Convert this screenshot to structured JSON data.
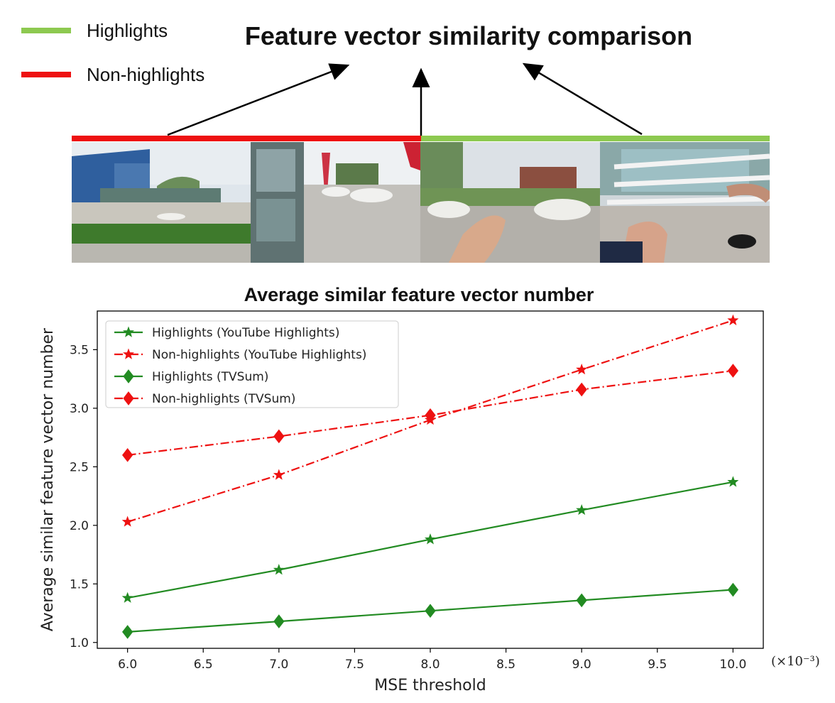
{
  "header": {
    "title": "Feature vector similarity comparison",
    "legend": [
      {
        "label": "Highlights",
        "color": "#8dc950"
      },
      {
        "label": "Non-highlights",
        "color": "#ee1111"
      }
    ]
  },
  "frames": [
    {
      "description_icon": "photo-icon",
      "group": "Non-highlights"
    },
    {
      "description_icon": "photo-icon",
      "group": "Non-highlights"
    },
    {
      "description_icon": "photo-icon",
      "group": "Highlights"
    },
    {
      "description_icon": "photo-icon",
      "group": "Highlights"
    }
  ],
  "chart_data": {
    "type": "line",
    "title": "Average similar feature vector number",
    "xlabel": "MSE threshold",
    "ylabel": "Average similar feature vector number",
    "x_multiplier_label": "(×10⁻³)",
    "x": [
      6.0,
      7.0,
      8.0,
      9.0,
      10.0
    ],
    "xlim": [
      5.8,
      10.2
    ],
    "ylim": [
      0.95,
      3.83
    ],
    "xticks": [
      "6.0",
      "6.5",
      "7.0",
      "7.5",
      "8.0",
      "8.5",
      "9.0",
      "9.5",
      "10.0"
    ],
    "xtick_values": [
      6.0,
      6.5,
      7.0,
      7.5,
      8.0,
      8.5,
      9.0,
      9.5,
      10.0
    ],
    "yticks": [
      "1.0",
      "1.5",
      "2.0",
      "2.5",
      "3.0",
      "3.5"
    ],
    "ytick_values": [
      1.0,
      1.5,
      2.0,
      2.5,
      3.0,
      3.5
    ],
    "grid": false,
    "legend_position": "top-left",
    "series": [
      {
        "name": "Highlights (YouTube Highlights)",
        "values": [
          1.38,
          1.62,
          1.88,
          2.13,
          2.37
        ],
        "color": "#228b22",
        "marker": "star",
        "dash": "solid"
      },
      {
        "name": "Non-highlights (YouTube Highlights)",
        "values": [
          2.03,
          2.43,
          2.9,
          3.33,
          3.75
        ],
        "color": "#ee1111",
        "marker": "star",
        "dash": "dashdot"
      },
      {
        "name": "Highlights (TVSum)",
        "values": [
          1.09,
          1.18,
          1.27,
          1.36,
          1.45
        ],
        "color": "#228b22",
        "marker": "diamond",
        "dash": "solid"
      },
      {
        "name": "Non-highlights (TVSum)",
        "values": [
          2.6,
          2.76,
          2.94,
          3.16,
          3.32
        ],
        "color": "#ee1111",
        "marker": "diamond",
        "dash": "dashdot"
      }
    ]
  }
}
